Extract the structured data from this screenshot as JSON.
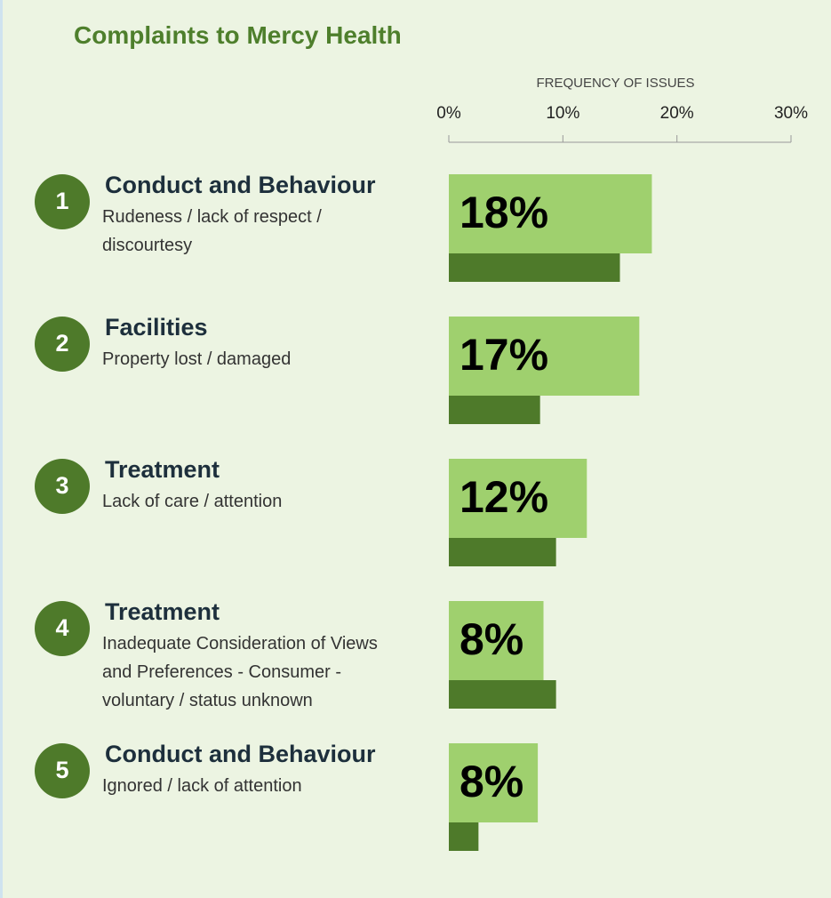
{
  "chart_data": {
    "type": "bar",
    "orientation": "horizontal",
    "title": "Complaints to Mercy Health",
    "xlabel": "FREQUENCY OF ISSUES",
    "ranks": [
      1,
      2,
      3,
      4,
      5
    ],
    "categories": [
      "Conduct and Behaviour",
      "Facilities",
      "Treatment",
      "Treatment",
      "Conduct and Behaviour"
    ],
    "subcategories": [
      "Rudeness / lack of respect / discourtesy",
      "Property lost / damaged",
      "Lack of care / attention",
      "Inadequate Consideration of Views and Preferences - Consumer - voluntary / status unknown",
      "Ignored / lack of attention"
    ],
    "series": [
      {
        "color": "#9fd06e",
        "values": [
          17.8,
          16.7,
          12.1,
          8.3,
          7.8
        ],
        "value_labels": [
          "18%",
          "17%",
          "12%",
          "8%",
          "8%"
        ]
      },
      {
        "color": "#4e7a2a",
        "values": [
          15.0,
          8.0,
          9.4,
          9.4,
          2.6
        ]
      }
    ],
    "xlim": [
      0,
      30
    ],
    "xticks": [
      {
        "value": 0,
        "label": "0%"
      },
      {
        "value": 10,
        "label": "10%"
      },
      {
        "value": 20,
        "label": "20%"
      },
      {
        "value": 30,
        "label": "30%"
      }
    ]
  }
}
